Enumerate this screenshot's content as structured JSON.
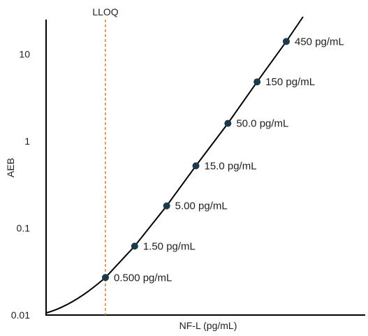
{
  "chart_data": {
    "type": "line",
    "title": "",
    "xlabel": "NF-L (pg/mL)",
    "ylabel": "AEB",
    "yscale": "log",
    "ylim": [
      0.01,
      25
    ],
    "y_ticks": [
      {
        "value": 0.01,
        "label": "0.01"
      },
      {
        "value": 0.1,
        "label": "0.1"
      },
      {
        "value": 1,
        "label": "1"
      },
      {
        "value": 10,
        "label": "10"
      }
    ],
    "x_ticks_shown": false,
    "grid": false,
    "colors": {
      "curve": "#000000",
      "points": "#1b3a4b",
      "lloq_line": "#d9822b",
      "axes": "#000000"
    },
    "reference_line": {
      "label": "LLOQ",
      "x": 0.5,
      "style": "dashed"
    },
    "points": [
      {
        "x": 0.5,
        "y": 0.027,
        "label": "0.500 pg/mL"
      },
      {
        "x": 1.5,
        "y": 0.062,
        "label": "1.50 pg/mL"
      },
      {
        "x": 5.0,
        "y": 0.18,
        "label": "5.00 pg/mL"
      },
      {
        "x": 15.0,
        "y": 0.52,
        "label": "15.0 pg/mL"
      },
      {
        "x": 50.0,
        "y": 1.6,
        "label": "50.0 pg/mL"
      },
      {
        "x": 150,
        "y": 4.8,
        "label": "150 pg/mL"
      },
      {
        "x": 450,
        "y": 14,
        "label": "450 pg/mL"
      }
    ]
  }
}
